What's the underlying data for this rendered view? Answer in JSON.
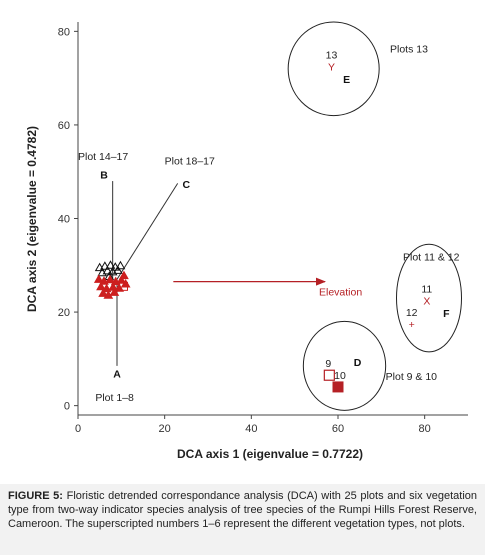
{
  "chart_data": {
    "type": "scatter",
    "xlabel": "DCA axis 1 (eigenvalue = 0.7722)",
    "ylabel": "DCA axis 2 (eigenvalue = 0.4782)",
    "xlim": [
      0,
      90
    ],
    "ylim": [
      -2,
      82
    ],
    "xticks": [
      "0",
      "20",
      "40",
      "60",
      "80"
    ],
    "yticks": [
      "0",
      "20",
      "40",
      "60",
      "80"
    ],
    "grid": false,
    "vectors": [
      {
        "label": "A",
        "start": [
          9,
          26
        ],
        "end": [
          9,
          8.5
        ]
      },
      {
        "label": "B",
        "start": [
          8,
          26
        ],
        "end": [
          8,
          48
        ]
      },
      {
        "label": "C",
        "start": [
          9,
          27
        ],
        "end": [
          23,
          47.5
        ]
      }
    ],
    "elevation_arrow": {
      "label": "Elevation",
      "start": [
        22,
        26.5
      ],
      "end": [
        57,
        26.5
      ]
    },
    "ellipses": [
      {
        "cx": 59,
        "cy": 72,
        "rx": 10.5,
        "ry": 10
      },
      {
        "cx": 81,
        "cy": 23,
        "rx": 7.5,
        "ry": 11.5
      },
      {
        "cx": 61.5,
        "cy": 8.5,
        "rx": 9.5,
        "ry": 9.5
      }
    ],
    "plot_labels": [
      {
        "text": "Plots 13",
        "x": 72,
        "y": 75.5
      },
      {
        "text": "Plot 14–17",
        "x": 0,
        "y": 52.5
      },
      {
        "text": "Plot 18–17",
        "x": 20,
        "y": 51.5
      },
      {
        "text": "Plot 11 & 12",
        "x": 75,
        "y": 31
      },
      {
        "text": "Plot 9 & 10",
        "x": 71,
        "y": 5.5
      },
      {
        "text": "Plot 1–8",
        "x": 4,
        "y": 1
      }
    ],
    "group_letters": [
      {
        "text": "A",
        "x": 9,
        "y": 6
      },
      {
        "text": "B",
        "x": 6,
        "y": 48.5
      },
      {
        "text": "C",
        "x": 25,
        "y": 46.5
      },
      {
        "text": "D",
        "x": 64.5,
        "y": 8.5
      },
      {
        "text": "E",
        "x": 62,
        "y": 69
      },
      {
        "text": "F",
        "x": 85,
        "y": 19
      }
    ],
    "points": [
      {
        "plot": "13",
        "symbol": "Y",
        "x": 58.5,
        "y": 72.5
      },
      {
        "plot": "11",
        "symbol": "X",
        "x": 80.5,
        "y": 22.5
      },
      {
        "plot": "12",
        "symbol": "+",
        "x": 77,
        "y": 17.5
      },
      {
        "plot": "9",
        "symbol": "open-square",
        "x": 58,
        "y": 6.5
      },
      {
        "plot": "10",
        "symbol": "filled-square",
        "x": 60,
        "y": 4
      }
    ],
    "cluster_points": [
      {
        "x": 5.0,
        "y": 29.5,
        "color": "#111111"
      },
      {
        "x": 6.2,
        "y": 29.8,
        "color": "#111111"
      },
      {
        "x": 7.5,
        "y": 30.0,
        "color": "#111111"
      },
      {
        "x": 8.6,
        "y": 29.6,
        "color": "#111111"
      },
      {
        "x": 9.8,
        "y": 29.9,
        "color": "#111111"
      },
      {
        "x": 6.8,
        "y": 28.8,
        "color": "#111111"
      },
      {
        "x": 8.0,
        "y": 28.6,
        "color": "#111111"
      },
      {
        "x": 9.2,
        "y": 28.9,
        "color": "#111111"
      },
      {
        "x": 5.6,
        "y": 28.4,
        "color": "#111111"
      },
      {
        "x": 7.2,
        "y": 27.6,
        "color": "#111111"
      },
      {
        "x": 4.8,
        "y": 27.0,
        "color": "#cc1f1f"
      },
      {
        "x": 6.0,
        "y": 26.6,
        "color": "#cc1f1f"
      },
      {
        "x": 7.4,
        "y": 26.9,
        "color": "#cc1f1f"
      },
      {
        "x": 8.7,
        "y": 26.5,
        "color": "#cc1f1f"
      },
      {
        "x": 10.0,
        "y": 26.8,
        "color": "#cc1f1f"
      },
      {
        "x": 5.3,
        "y": 25.4,
        "color": "#cc1f1f"
      },
      {
        "x": 6.6,
        "y": 25.0,
        "color": "#cc1f1f"
      },
      {
        "x": 8.1,
        "y": 25.3,
        "color": "#cc1f1f"
      },
      {
        "x": 9.5,
        "y": 25.1,
        "color": "#cc1f1f"
      },
      {
        "x": 5.8,
        "y": 24.0,
        "color": "#cc1f1f"
      },
      {
        "x": 7.0,
        "y": 23.6,
        "color": "#cc1f1f"
      },
      {
        "x": 8.4,
        "y": 24.2,
        "color": "#cc1f1f"
      },
      {
        "x": 10.6,
        "y": 27.8,
        "color": "#cc1f1f"
      },
      {
        "x": 11.0,
        "y": 26.0,
        "color": "#cc1f1f"
      }
    ],
    "cluster_box": {
      "x": 10.5,
      "y": 25.5
    }
  },
  "caption": {
    "label": "FIGURE 5:",
    "text": "Floristic detrended correspondance analysis (DCA) with 25 plots and six vegetation type from two-way indicator species analysis of tree species of the Rumpi Hills Forest Reserve, Cameroon. The superscripted numbers 1–6 represent the different vegetation types, not plots."
  },
  "colors": {
    "accent_red": "#b52025",
    "axis": "#333333"
  }
}
